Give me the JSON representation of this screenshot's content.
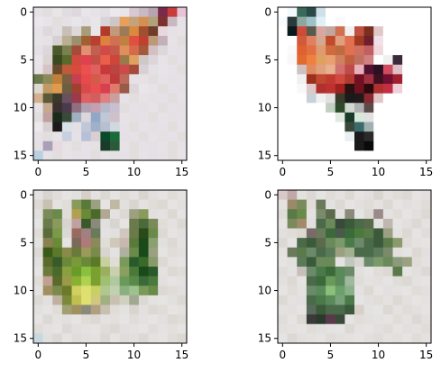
{
  "chart_data": [
    {
      "type": "heatmap",
      "grid_size": 16,
      "xlim": [
        0,
        15
      ],
      "ylim": [
        15,
        0
      ],
      "x_ticks": [
        "0",
        "5",
        "10",
        "15"
      ],
      "y_ticks": [
        "0",
        "5",
        "10",
        "15"
      ],
      "description_colors": {
        "background": "#e6e1e6",
        "accent_1": "#d94a3d",
        "accent_2": "#5a6a2a"
      },
      "rows": [
        "e6e1e6 e2dede e8e4e8 e0dde0 ded8dc e9e6ea e6e2e6 e4dfe2 ece8ec e9e6ea d9c8d0 c9b9c2 b8a4b0 7a2a4a c83c3c e8c3d6",
        "ebe6eb e7e3e7 e2dede e4e0e4 e9e6ea e4e0e4 e9e6ea d8d3d6 cfc6c8 e6a05a c4a27a d49050 b2a27a 7c3030 c8b8c0 e6e1e6",
        "e6e2e6 dcd8dc e3dfe3 c8c0b8 ded8dc a89d7a e9e6ea b23a2a c09a7a 9c7a5a d98a3c a05030 703d2a e8d8dc e6e1e6 e6e2e6",
        "e7e3e7 e5e1e5 d8d0d0 b8b090 9a9070 a06030 b84030 e08040 d07050 c08040 e05040 c04030 bc9a78 c4b0b8 e6e2e6 e2dede",
        "e4e0e4 ddd6da 4a5a2a 7a8050 a64a3a e09070 c06050 d04a4a c4584a e08e5a d46a4a a45a3a d4c0c4 ddd6da e6e1e6 e4e0e4",
        "e8e4e8 dcd3d3 3a4a1f 5a6a2a d04a3d e04050 c44f46 e8604a d0443a 9a7a4a e0a060 d0c8c8 dcd6da e6e2e6 e2dede e6e1e6",
        "e6e2e6 d6c4c4 6a4a2a c05a3a d94a3d ea5050 e06060 c83a3a b84540 cc4a4a a64a3a d8d0d4 e4e0e4 e7e3e7 e6e1e6 e2dede",
        "6a7a4a 8a8a5a c0803a 7a6040 c84050 e84a4a d45a4a e06060 c03a3a bc6a5a e6e1e6 e5e1e5 e2dede e6e2e6 e4e0e4 e6e1e6",
        "ddd8d0 c09a60 e09a50 6a6040 a04030 d84a4a e85050 d84050 e07a6a 9a5a4a ddd6da e9e6ea e6e2e6 e2dede e6e1e6 e4e0e4",
        "d4b090 5a5a3a 3a3a2a 6a5060 9a3a4a e06060 d06060 e08080 c8a0a0 e6e1e6 e2dede e6e2e6 e4e0e4 e6e1e6 e2dede e6e2e6",
        "e6e2e6 c4a890 3a3030 4a3a4a 907080 b0a0b0 c4a0b0 b6b8c8 c8c0d0 e2dede e6e1e6 e4e0e4 e6e2e6 e2dede e6e1e6 e4e0e4",
        "e2dede c0a0a0 1a2a1a 3a4a3a a0b0c0 ddd6da 90a8c8 c0c8d8 d0c0c8 e6e2e6 e4e0e4 e6e1e6 e2dede e6e2e6 e4e0e4 e6e1e6",
        "ece8ec d8d0d0 1a1a1a d8e0e8 e4e0e4 c0c8d8 a0b0c8 b8c0d0 d0d8e0 e6e1e6 e2dede e6e2e6 e4e0e4 e6e1e6 e2dede e6e2e6",
        "e6e1e6 e2dede e6e2e6 c8d0e0 e6e1e6 b8c0d8 d8d0d0 0a4a2a 1a6a3a e4e0e4 e6e1e6 e2dede e6e2e6 e4e0e4 e6e1e6 e2dede",
        "e4e0e4 a8a0b8 e8d8e0 e6e2e6 e2dede e6e1e6 e4e0e4 1a3a2a 2a5a3a e6e2e6 e2dede e6e1e6 e4e0e4 e6e2e6 e2dede e6e1e6",
        "b8d0e0 e6e1e6 e2dede e6e2e6 e4e0e4 e6e1e6 e2dede e6e2e6 e4e0e4 e6e1e6 e2dede e6e2e6 e4e0e4 e6e1e6 e2dede e6e2e6"
      ]
    },
    {
      "type": "heatmap",
      "grid_size": 16,
      "xlim": [
        0,
        15
      ],
      "ylim": [
        15,
        0
      ],
      "x_ticks": [
        "0",
        "5",
        "10",
        "15"
      ],
      "y_ticks": [
        "0",
        "5",
        "10",
        "15"
      ],
      "description_colors": {
        "background": "#ffffff",
        "accent_1": "#e07040",
        "accent_2": "#301020"
      },
      "rows": [
        "ffffff f4fafc 3a6a5a 2a4a4a d0e0e8 ffffff ffffff ffffff ffffff ffffff ffffff ffffff ffffff ffffff ffffff ffffff",
        "f8fcff 2a3a3a 8aa8a0 a0c0c8 e0f0f4 ffffff fafafa ffffff ffffff ffffff ffffff ffffff ffffff ffffff ffffff ffffff",
        "ffffff 0a1a1a d04a3a 5a5a4a d8a8a0 c0a8a0 d07050 f0f0f0 c05040 7a3020 e0c8c8 ffffff ffffff ffffff ffffff ffffff",
        "ffffff ffffff d05a3a e08060 d4a890 c04a2a e0a080 e07050 a03a20 701f2f f0e0e8 ffffff ffffff ffffff ffffff ffffff",
        "ffffff fafafa e06030 e07040 e09a70 d06a40 c06a40 e07050 d07060 c06060 f0d8dc ffffff ffffff ffffff ffffff ffffff",
        "ffffff f8f8f8 e06a30 f08040 e0a060 e8a070 d08060 c06040 c07060 d08080 ffffff f0f0f0 3a2a3a ffffff ffffff ffffff",
        "ffffff ffffff d0c0c0 e08a60 e0a080 e8b090 d07070 c04a4a e8b0b8 501030 2a1020 d04a60 e0c0c8 ffffff ffffff ffffff",
        "ffffff ffffff f0f0f0 9a3020 c04a30 c03a30 d04a40 b03a30 701020 a03040 401020 701030 a02030 ffffff ffffff ffffff",
        "ffffff ffffff f8f8f8 e0c8c8 b03030 c03030 a02020 2a1010 701020 2a0a0a b03030 c03040 f0d0d8 ffffff ffffff ffffff",
        "ffffff ffffff ffffff c8d0d8 f0f0f0 e0e0e0 3a3a2a 1a1a1a 201a1a 8a2a30 e0c8c8 ffffff ffffff ffffff ffffff ffffff",
        "ffffff ffffff ffffff ffffff ffffff c0d0c0 2a4a2a d0d8d0 b0b0b0 5a4a4a ffffff ffffff ffffff ffffff ffffff ffffff",
        "ffffff ffffff ffffff ffffff ffffff ffffff e0e8e0 1a3a2a d8e8d8 e0e0e0 ffffff ffffff ffffff ffffff ffffff ffffff",
        "ffffff ffffff ffffff ffffff ffffff ffffff ffffff 3a4a3a 3a6a6a a0b0b0 ffffff ffffff ffffff ffffff ffffff ffffff",
        "ffffff ffffff ffffff ffffff ffffff ffffff ffffff e8f0f0 1a1a1a 2a2a2a ffffff ffffff ffffff ffffff ffffff ffffff",
        "ffffff ffffff ffffff ffffff ffffff ffffff ffffff ffffff 1a1a1a 0a0a0a ffffff ffffff ffffff ffffff ffffff ffffff",
        "ffffff ffffff ffffff ffffff ffffff ffffff ffffff ffffff ffffff ffffff ffffff ffffff ffffff ffffff ffffff ffffff"
      ]
    },
    {
      "type": "heatmap",
      "grid_size": 16,
      "xlim": [
        0,
        15
      ],
      "ylim": [
        15,
        0
      ],
      "x_ticks": [
        "0",
        "5",
        "10",
        "15"
      ],
      "y_ticks": [
        "0",
        "5",
        "10",
        "15"
      ],
      "description_colors": {
        "background": "#e4e2e0",
        "accent_1": "#8ac040",
        "accent_2": "#1a4a1a"
      },
      "rows": [
        "e4e2e0 d8d4d0 e0dcd8 e6e4e2 e2e0de d8d0c8 e4e2e0 dcd8d4 e6e4e2 e0dcd8 e4e2e0 d8d4d0 e2e0de e6e4e2 e0dcd8 e4e2e0",
        "dcd8d4 c8c0b0 e4e2e0 e0dcd8 8a9a5a 5a7a3a 9aa080 e6e4e2 c0b8a0 e2e0de d8d4d0 e4e2e0 e0dcd8 dcd8d4 e6e4e2 e2e0de",
        "e2e0de 7a8a5a 6a8a4a e0dcd8 b0a050 6a8a3a 4a6a2a b0a890 e4e2e0 dcd8d4 9aa080 8a9a5a e2e0de e4e2e0 dcd8d4 e6e4e2",
        "e6e4e2 6a7a4a 8a9a5a d8d4d0 c0a0a0 3a5a2a 8a8a7a e2e0de d8d4d0 e6e4e2 6a7a4a 4a6a3a 7a8a5a e0dcd8 e4e2e0 dcd8d4",
        "e0dcd8 5a6a3a 7a9a4a dcd8d4 9a6a60 a08080 6a7a5a e4e2e0 e2e0de d0c8c0 6a7a4a 2a4a1a 6a8a4a dcd8d4 e6e4e2 e2e0de",
        "e4e2e0 8a8050 6a8a3a e6e4e2 7a6a5a b07a7a 8a8a5a e0dcd8 d0c8b8 c8b8b0 5a7a3a 1a4a1a 8aa070 e2e0de dcd8d4 e4e2e0",
        "dcd8d4 3a5a1a 5a7a2a 8a8a4a 6a7a3a 9a9a5a 7a8a4a d8d4d0 e4e2e0 b0b0a0 6a8a4a 1a4a1a 9aa080 e6e4e2 e0dcd8 e2e0de",
        "e2e0de 5a6a2a 3a5a2a 6a8a3a 7a9a3a 6a8a3a 5a7a2a c8d0a0 e0dcd8 7a9a5a 2a5a2a 3a6a2a 8a9a6a dcd8d4 e4e2e0 e6e4e2",
        "e6e4e2 6a7a3a 4a6a2a 8aa040 6a9a2a 8ac040 7aa030 9ab060 c8d0b0 8aa060 4a7a3a 1a4a1a 2a5a2a e4e2e0 dcd8d4 e0dcd8",
        "e0dcd8 c0a090 5a6a2a 9a9a4a 8ab030 b0d050 7aa030 a0c070 b0c8a0 6a9a5a 5a8a4a 3a6a3a 4a7a3a e2e0de e6e4e2 e4e2e0",
        "e4e2e0 a09060 7a8a4a 6a7a2a d0d060 e0e070 c8d060 b0c890 c0d0b0 8ab080 a0c090 7a9a5a 6a8a4a dcd8d4 e0dcd8 e2e0de",
        "dcd8d4 e2e0de c0b0a0 7a8a3a c0c050 e0e070 d0c880 a0b080 c8c0b0 d0d0c0 a0a890 dcd8d4 e4e2e0 e6e4e2 e2e0de dcd8d4",
        "e2e0de e6e4e2 e0dcd8 a0a070 a09060 8a8a7a b0a080 c8c0b0 e0dcd8 e4e2e0 d8d4d0 e2e0de dcd8d4 e0dcd8 e6e4e2 e4e2e0",
        "e6e4e2 dcd8d4 e4e2e0 e2e0de e6e4e2 e0dcd8 dcd8d4 e4e2e0 e2e0de e6e4e2 e0dcd8 e4e2e0 e6e4e2 e2e0de dcd8d4 e0dcd8",
        "e0dcd8 e4e2e0 e6e4e2 dcd8d4 e2e0de e4e2e0 e6e4e2 e0dcd8 dcd8d4 e2e0de e4e2e0 e6e4e2 e0dcd8 e4e2e0 e2e0de e6e4e2",
        "c8d8e0 e2e0de dcd8d4 e6e4e2 e0dcd8 e2e0de e4e2e0 dcd8d4 e6e4e2 e0dcd8 e2e0de dcd8d4 e4e2e0 e6e4e2 e0dcd8 dcd8d4"
      ]
    },
    {
      "type": "heatmap",
      "grid_size": 16,
      "xlim": [
        0,
        15
      ],
      "ylim": [
        15,
        0
      ],
      "x_ticks": [
        "0",
        "5",
        "10",
        "15"
      ],
      "y_ticks": [
        "0",
        "5",
        "10",
        "15"
      ],
      "description_colors": {
        "background": "#e4e2e0",
        "accent_1": "#4a8a4a",
        "accent_2": "#1a3a2a"
      },
      "rows": [
        "d8c8c8 c0a8a8 e4e2e0 dcd8d4 e6e4e2 e0dcd8 e4e2e0 dcd8d4 e6e4e2 e2e0de d8d4d0 e4e2e0 e0dcd8 dcd8d4 e6e4e2 e2e0de",
        "e4e2e0 9a8a6a 7a8a5a e0dcd8 6a7a5a e4e2e0 dcd8d4 e6e4e2 e2e0de e0dcd8 e4e2e0 dcd8d4 e6e4e2 e2e0de e4e2e0 e0dcd8",
        "e0dcd8 5a7a4a 6a8a4a e4e2e0 7a8a6a 5a6a4a e2e0de 8a8a7a e6e4e2 dcd8d4 9a8a8a e4e2e0 e0dcd8 e6e4e2 e2e0de dcd8d4",
        "e6e4e2 7a8a5a a08a6a e2e0de 4a6a4a 6a8a5a 3a4a3a 3a5a3a 4a6a4a 5a6a4a e4e2e0 c0b8b0 e6e4e2 e2e0de dcd8d4 e4e2e0",
        "e2e0de e0dcd8 dcd8d4 7a6a6a 6a7a5a 3a6a3a 4a5a4a 3a6a3a 4a7a3a 5a7a4a 3a5a3a 9aa080 e4e2e0 dcd8d4 e6e4e2 e0dcd8",
        "dcd8d4 e6e4e2 4a6a4a 3a5a3a 5a6a4a 6a8a5a 7a9a6a 4a7a4a 6a8a6a 4a6a4a 3a5a3a 5a7a4a 8a9a6a e0dcd8 e4e2e0 e6e4e2",
        "e4e2e0 6a7a5a 5a7a4a 6a8a6a 4a6a4a 5a7a5a 9aa080 a0b090 4a6a4a 4a6a4a 5a7a5a 7a8a6a e2e0de e6e4e2 dcd8d4 e2e0de",
        "e6e4e2 e2e0de 5a7a5a 3a5a3a 6a8a5a 6a8a5a e4e2e0 c0c8c0 d8d4d0 6a8a6a 7a9a6a 6a8a5a 8a9a7a 9aa080 e0dcd8 e4e2e0",
        "e0dcd8 e4e2e0 c8c0b8 6a8a6a 4a7a4a 3a6a3a 5a8a5a 6a8a6a e2e0de e6e4e2 e0dcd8 dcd8d4 5a7a4a e6e4e2 e2e0de dcd8d4",
        "e2e0de dcd8d4 e6e4e2 4a6a4a 3a6a3a 6a9a5a 5a8a5a a0b8a0 e0dcd8 e4e2e0 e2e0de e6e4e2 e0dcd8 dcd8d4 e4e2e0 e6e4e2",
        "e6e4e2 e0dcd8 e4e2e0 6a8a6a 5a8a5a 8ac07a 6aa06a 8ab08a e4e2e0 dcd8d4 e6e4e2 e2e0de e4e2e0 e6e4e2 e0dcd8 e2e0de",
        "dcd8d4 e4e2e0 e2e0de 4a6a4a 4a7a4a 5a8a5a 7aa07a 4a7a4a e6e4e2 e2e0de e0dcd8 e4e2e0 dcd8d4 e2e0de e6e4e2 e4e2e0",
        "e4e2e0 e2e0de e6e4e2 5a6a5a 3a5a3a 4a6a4a 4a6a4a 3a5a3a d8d0c8 e4e2e0 e6e4e2 dcd8d4 e4e2e0 e0dcd8 e2e0de e6e4e2",
        "e0dcd8 e6e4e2 dcd8d4 3a3a3a 2a3a2a 5a3a4a 3a4a3a e6e4e2 e0dcd8 e2e0de e4e2e0 e6e4e2 e0dcd8 e4e2e0 dcd8d4 e2e0de",
        "e2e0de e4e2e0 e6e4e2 e0dcd8 e2e0de e4e2e0 e6e4e2 dcd8d4 e4e2e0 e6e4e2 e2e0de e0dcd8 e6e4e2 e2e0de e4e2e0 e0dcd8",
        "e6e4e2 dcd8d4 e2e0de e4e2e0 e6e4e2 e0dcd8 e2e0de e4e2e0 e6e4e2 e2e0de e0dcd8 e4e2e0 e2e0de e6e4e2 e0dcd8 e4e2e0"
      ]
    }
  ]
}
